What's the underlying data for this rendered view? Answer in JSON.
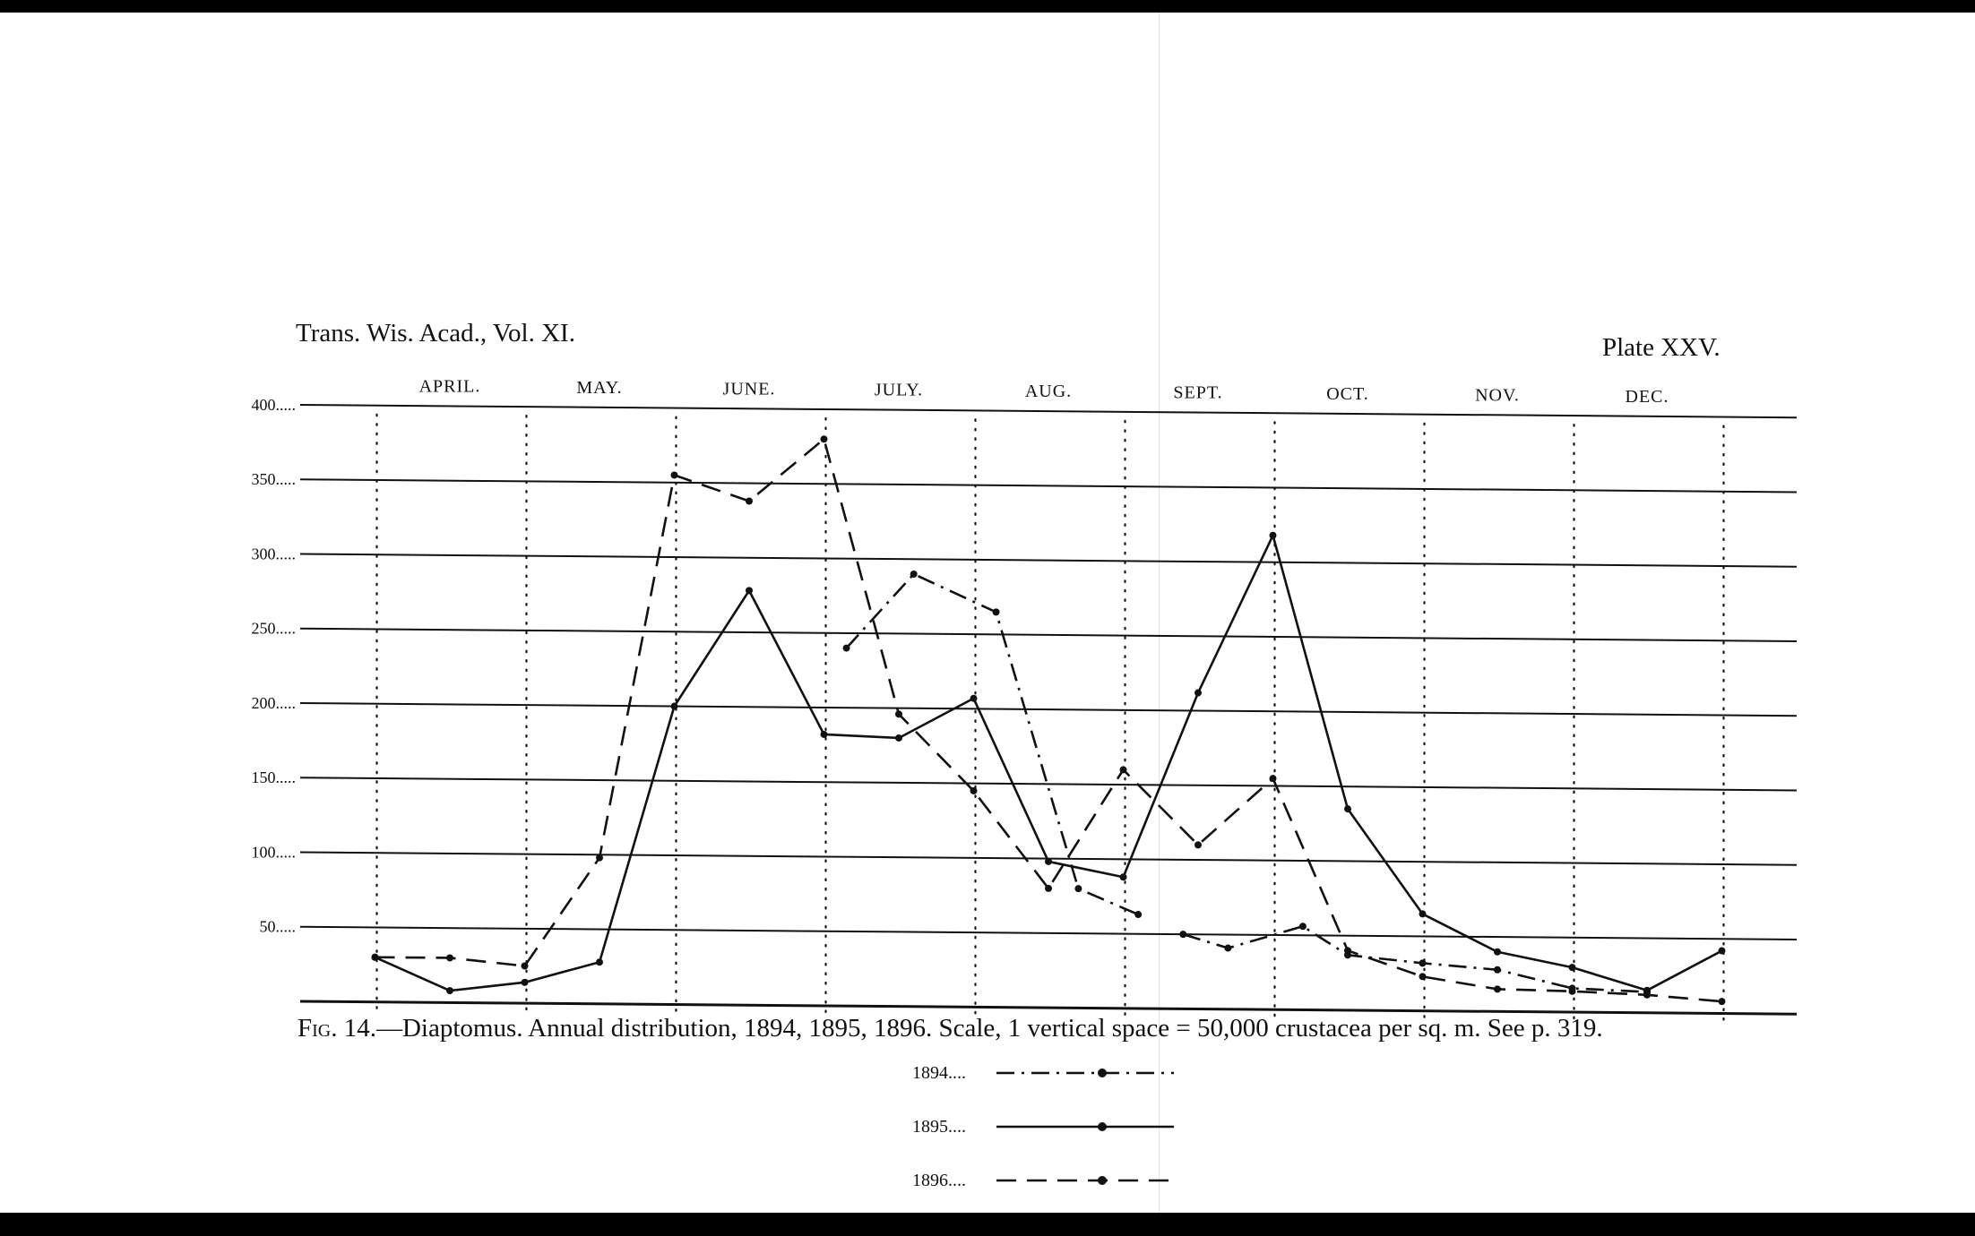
{
  "header": {
    "journal": "Trans. Wis. Acad., Vol. XI.",
    "plate": "Plate XXV."
  },
  "caption": {
    "fig_label": "Fig. 14.",
    "text": "—Diaptomus.   Annual distribution, 1894, 1895, 1896.   Scale, 1 vertical space = 50,000 crustacea per sq. m.   See p. 319."
  },
  "chart_data": {
    "type": "line",
    "title": "",
    "xlabel": "",
    "ylabel": "",
    "ylim": [
      0,
      400
    ],
    "xlim": [
      3.5,
      13.5
    ],
    "months": [
      "April.",
      "May.",
      "June.",
      "July.",
      "Aug.",
      "Sept.",
      "Oct.",
      "Nov.",
      "Dec."
    ],
    "yticks": [
      {
        "value": 400,
        "label": "400....."
      },
      {
        "value": 350,
        "label": "350....."
      },
      {
        "value": 300,
        "label": "300....."
      },
      {
        "value": 250,
        "label": "250....."
      },
      {
        "value": 200,
        "label": "200....."
      },
      {
        "value": 150,
        "label": "150....."
      },
      {
        "value": 100,
        "label": "100....."
      },
      {
        "value": 50,
        "label": "50....."
      }
    ],
    "grid": true,
    "legend_position": "bottom-center",
    "series": [
      {
        "name": "1894....",
        "style": "dash-dot",
        "color": "#111111",
        "segments": [
          [
            [
              7.15,
              240
            ],
            [
              7.6,
              290
            ],
            [
              8.15,
              265
            ],
            [
              8.7,
              80
            ],
            [
              9.1,
              63
            ]
          ],
          [
            [
              9.4,
              50
            ],
            [
              9.7,
              41
            ],
            [
              10.2,
              56
            ],
            [
              10.5,
              37
            ],
            [
              11.0,
              32
            ],
            [
              11.5,
              28
            ],
            [
              12.0,
              16
            ],
            [
              12.5,
              14
            ]
          ]
        ]
      },
      {
        "name": "1895....",
        "style": "solid",
        "color": "#111111",
        "segments": [
          [
            [
              4.0,
              30
            ],
            [
              4.5,
              8
            ],
            [
              5.0,
              14
            ],
            [
              5.5,
              28
            ],
            [
              6.0,
              200
            ],
            [
              6.5,
              278
            ],
            [
              7.0,
              182
            ],
            [
              7.5,
              180
            ],
            [
              8.0,
              207
            ],
            [
              8.5,
              98
            ],
            [
              9.0,
              88
            ],
            [
              9.5,
              212
            ],
            [
              10.0,
              318
            ],
            [
              10.5,
              135
            ],
            [
              11.0,
              65
            ],
            [
              11.5,
              40
            ],
            [
              12.0,
              30
            ],
            [
              12.5,
              15
            ],
            [
              13.0,
              42
            ]
          ]
        ]
      },
      {
        "name": "1896....",
        "style": "dashed",
        "color": "#111111",
        "segments": [
          [
            [
              4.0,
              30
            ],
            [
              4.5,
              30
            ],
            [
              5.0,
              25
            ],
            [
              5.5,
              98
            ],
            [
              6.0,
              355
            ],
            [
              6.5,
              338
            ],
            [
              7.0,
              380
            ],
            [
              7.5,
              196
            ],
            [
              8.0,
              145
            ],
            [
              8.5,
              80
            ],
            [
              9.0,
              160
            ],
            [
              9.5,
              110
            ],
            [
              10.0,
              155
            ],
            [
              10.5,
              40
            ],
            [
              11.0,
              23
            ],
            [
              11.5,
              15
            ],
            [
              12.0,
              14
            ],
            [
              12.5,
              12
            ],
            [
              13.0,
              8
            ]
          ]
        ]
      }
    ]
  }
}
